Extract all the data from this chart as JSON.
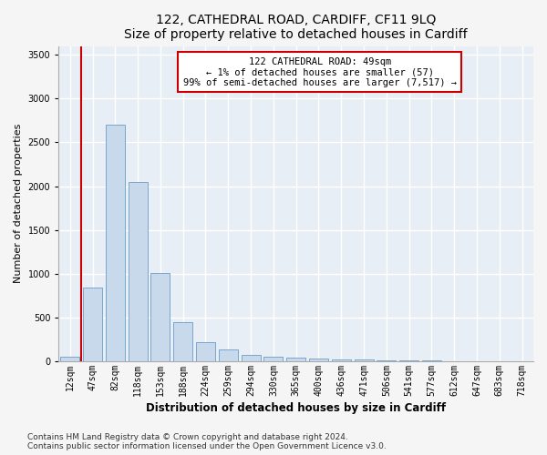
{
  "title1": "122, CATHEDRAL ROAD, CARDIFF, CF11 9LQ",
  "title2": "Size of property relative to detached houses in Cardiff",
  "xlabel": "Distribution of detached houses by size in Cardiff",
  "ylabel": "Number of detached properties",
  "categories": [
    "12sqm",
    "47sqm",
    "82sqm",
    "118sqm",
    "153sqm",
    "188sqm",
    "224sqm",
    "259sqm",
    "294sqm",
    "330sqm",
    "365sqm",
    "400sqm",
    "436sqm",
    "471sqm",
    "506sqm",
    "541sqm",
    "577sqm",
    "612sqm",
    "647sqm",
    "683sqm",
    "718sqm"
  ],
  "values": [
    57,
    840,
    2700,
    2050,
    1010,
    450,
    215,
    140,
    70,
    50,
    40,
    30,
    25,
    20,
    15,
    10,
    8,
    5,
    4,
    3,
    2
  ],
  "bar_color": "#c9d9ec",
  "bar_edge_color": "#6a9cc9",
  "annotation_title": "122 CATHEDRAL ROAD: 49sqm",
  "annotation_line1": "← 1% of detached houses are smaller (57)",
  "annotation_line2": "99% of semi-detached houses are larger (7,517) →",
  "annotation_box_color": "#ffffff",
  "annotation_box_edge": "#cc0000",
  "vline_color": "#cc0000",
  "ylim": [
    0,
    3600
  ],
  "yticks": [
    0,
    500,
    1000,
    1500,
    2000,
    2500,
    3000,
    3500
  ],
  "footer1": "Contains HM Land Registry data © Crown copyright and database right 2024.",
  "footer2": "Contains public sector information licensed under the Open Government Licence v3.0.",
  "background_color": "#e8eef5",
  "grid_color": "#ffffff",
  "fig_background": "#f5f5f5",
  "title1_fontsize": 10,
  "title2_fontsize": 9,
  "xlabel_fontsize": 8.5,
  "ylabel_fontsize": 8,
  "tick_fontsize": 7,
  "annotation_fontsize": 7.5,
  "footer_fontsize": 6.5
}
